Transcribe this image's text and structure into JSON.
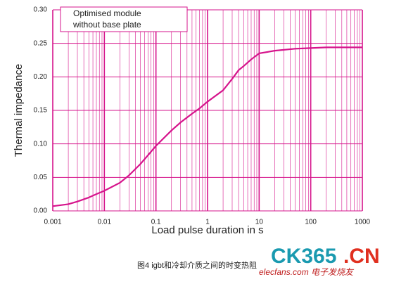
{
  "chart_data": {
    "type": "line",
    "xlabel": "Load pulse duration in s",
    "ylabel": "Thermal impedance",
    "annotation": [
      "Optimised module",
      "without base plate"
    ],
    "caption": "图4 igbt和冷却介质之间的时变热阻",
    "watermark": {
      "brand": "CK365",
      "suffix": ".CN",
      "site": "elecfans.com 电子发烧友"
    },
    "xscale": "log",
    "grid": true,
    "minor_grid": true,
    "grid_color": "#d6148c",
    "xlim": [
      0.001,
      1000
    ],
    "xticks": [
      0.001,
      0.01,
      0.1,
      1,
      10,
      100,
      1000
    ],
    "ylim": [
      0,
      0.3
    ],
    "yticks": [
      {
        "value": 0,
        "label": "0.00"
      },
      {
        "value": 0.05,
        "label": "0.05"
      },
      {
        "value": 0.1,
        "label": "0.10"
      },
      {
        "value": 0.15,
        "label": "0.15"
      },
      {
        "value": 0.2,
        "label": "0.20"
      },
      {
        "value": 0.25,
        "label": "0.25"
      },
      {
        "value": 0.3,
        "label": "0.30"
      }
    ],
    "series": [
      {
        "color": "#d6148c",
        "x": [
          0.001,
          0.002,
          0.003,
          0.005,
          0.007,
          0.01,
          0.02,
          0.03,
          0.05,
          0.07,
          0.1,
          0.2,
          0.3,
          0.5,
          0.7,
          1,
          2,
          3,
          4,
          5,
          7,
          10,
          20,
          50,
          100,
          200,
          1000
        ],
        "values": [
          0.007,
          0.01,
          0.014,
          0.02,
          0.025,
          0.03,
          0.042,
          0.053,
          0.07,
          0.083,
          0.097,
          0.12,
          0.132,
          0.145,
          0.153,
          0.163,
          0.18,
          0.197,
          0.21,
          0.216,
          0.226,
          0.235,
          0.239,
          0.242,
          0.243,
          0.244,
          0.244
        ]
      }
    ]
  }
}
